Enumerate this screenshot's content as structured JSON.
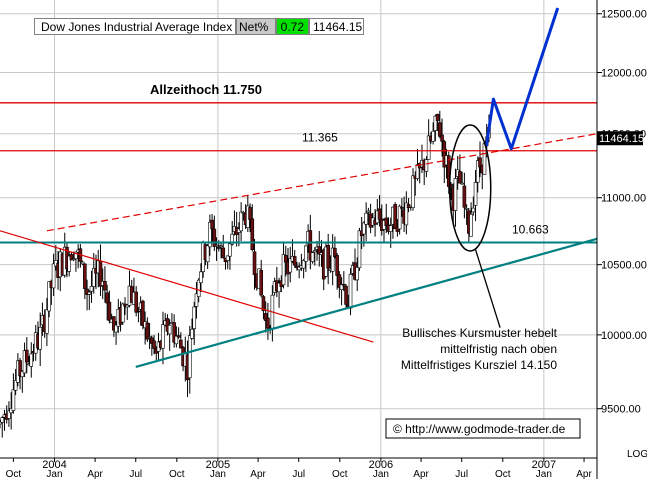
{
  "header": {
    "index_name": "Dow Jones Industrial Average Index",
    "net_label": "Net%",
    "net_value": "0.72",
    "last_value": "11464.15"
  },
  "price_tag": "11464.15",
  "corner_label": "LOG",
  "colors": {
    "candles": "#000000",
    "down_candle_fill": "#6b1010",
    "resistance": "#e00000",
    "support": "#008080",
    "projection": "#0030d0",
    "net_bg": "#00e000"
  },
  "chart_data": {
    "type": "candlestick",
    "y_scale": "log",
    "ylim": [
      9180,
      12620
    ],
    "x_range": [
      "2003-09-01",
      "2007-04-30"
    ],
    "y_ticks": [
      "12500.00",
      "12000.00",
      "11500.00",
      "11000.00",
      "10500.00",
      "10000.00",
      "9500.00"
    ],
    "x_ticks": [
      {
        "label": "Oct",
        "date": "2003-10-01"
      },
      {
        "label": "2004",
        "sub": "Jan",
        "date": "2004-01-01"
      },
      {
        "label": "Apr",
        "date": "2004-04-01"
      },
      {
        "label": "Jul",
        "date": "2004-07-01"
      },
      {
        "label": "Oct",
        "date": "2004-10-01"
      },
      {
        "label": "2005",
        "sub": "Jan",
        "date": "2005-01-01"
      },
      {
        "label": "Apr",
        "date": "2005-04-01"
      },
      {
        "label": "Jul",
        "date": "2005-07-01"
      },
      {
        "label": "Oct",
        "date": "2005-10-01"
      },
      {
        "label": "2006",
        "sub": "Jan",
        "date": "2006-01-01"
      },
      {
        "label": "Apr",
        "date": "2006-04-01"
      },
      {
        "label": "Jul",
        "date": "2006-07-01"
      },
      {
        "label": "Oct",
        "date": "2006-10-01"
      },
      {
        "label": "2007",
        "sub": "Jan",
        "date": "2007-01-01"
      },
      {
        "label": "Apr",
        "date": "2007-04-01"
      }
    ],
    "price_path": [
      [
        "2003-09-01",
        9400
      ],
      [
        "2003-10-15",
        9750
      ],
      [
        "2003-12-01",
        10000
      ],
      [
        "2004-01-01",
        10450
      ],
      [
        "2004-02-15",
        10650
      ],
      [
        "2004-03-15",
        10300
      ],
      [
        "2004-04-15",
        10450
      ],
      [
        "2004-05-15",
        10000
      ],
      [
        "2004-06-15",
        10350
      ],
      [
        "2004-07-15",
        10100
      ],
      [
        "2004-08-15",
        9850
      ],
      [
        "2004-09-15",
        10100
      ],
      [
        "2004-10-25",
        9800
      ],
      [
        "2004-11-15",
        10400
      ],
      [
        "2004-12-15",
        10750
      ],
      [
        "2005-01-15",
        10550
      ],
      [
        "2005-03-05",
        10900
      ],
      [
        "2005-04-20",
        10050
      ],
      [
        "2005-05-20",
        10450
      ],
      [
        "2005-06-20",
        10500
      ],
      [
        "2005-07-20",
        10650
      ],
      [
        "2005-08-20",
        10500
      ],
      [
        "2005-09-20",
        10550
      ],
      [
        "2005-10-20",
        10250
      ],
      [
        "2005-11-20",
        10750
      ],
      [
        "2005-12-20",
        10850
      ],
      [
        "2006-01-20",
        10800
      ],
      [
        "2006-02-20",
        10900
      ],
      [
        "2006-03-20",
        11100
      ],
      [
        "2006-05-10",
        11600
      ],
      [
        "2006-06-10",
        11000
      ],
      [
        "2006-06-25",
        11150
      ],
      [
        "2006-07-15",
        10750
      ],
      [
        "2006-08-01",
        11150
      ],
      [
        "2006-08-20",
        11350
      ],
      [
        "2006-09-01",
        11464
      ]
    ],
    "annotations": [
      {
        "text": "Allzeithoch   11.750",
        "value": 11750,
        "kind": "horizontal",
        "color": "resistance",
        "bold": true
      },
      {
        "text": "11.365",
        "value": 11365,
        "kind": "horizontal",
        "color": "resistance"
      },
      {
        "text": "10.663",
        "value": 10663,
        "kind": "horizontal",
        "color": "support"
      }
    ],
    "trendlines": [
      {
        "name": "resistance-trend-dashed",
        "color": "resistance",
        "dashed": true,
        "from": [
          "2003-12-15",
          10750
        ],
        "to": [
          "2007-04-30",
          11500
        ]
      },
      {
        "name": "falling-trend",
        "color": "resistance",
        "dashed": false,
        "from": [
          "2003-09-01",
          10750
        ],
        "to": [
          "2005-12-15",
          9950
        ]
      },
      {
        "name": "rising-support",
        "color": "support",
        "dashed": false,
        "from": [
          "2004-07-01",
          9780
        ],
        "to": [
          "2007-04-30",
          10690
        ]
      }
    ],
    "projection": [
      [
        "2006-08-25",
        11400
      ],
      [
        "2006-09-10",
        11780
      ],
      [
        "2006-10-20",
        11380
      ],
      [
        "2007-02-01",
        12550
      ]
    ],
    "ellipse": {
      "center": [
        "2006-07-20",
        11000
      ],
      "top": 11570,
      "bottom": 10600,
      "half_width_days": 46
    },
    "callout": {
      "lines": [
        "Bullisches Kursmuster hebelt",
        "mittelfristig nach oben",
        "Mittelfristiges Kursziel 14.150"
      ],
      "pointer_from": [
        "2006-08-01",
        10610
      ],
      "pointer_to": [
        "2006-09-25",
        10050
      ]
    },
    "watermark": "©  http://www.godmode-trader.de"
  }
}
